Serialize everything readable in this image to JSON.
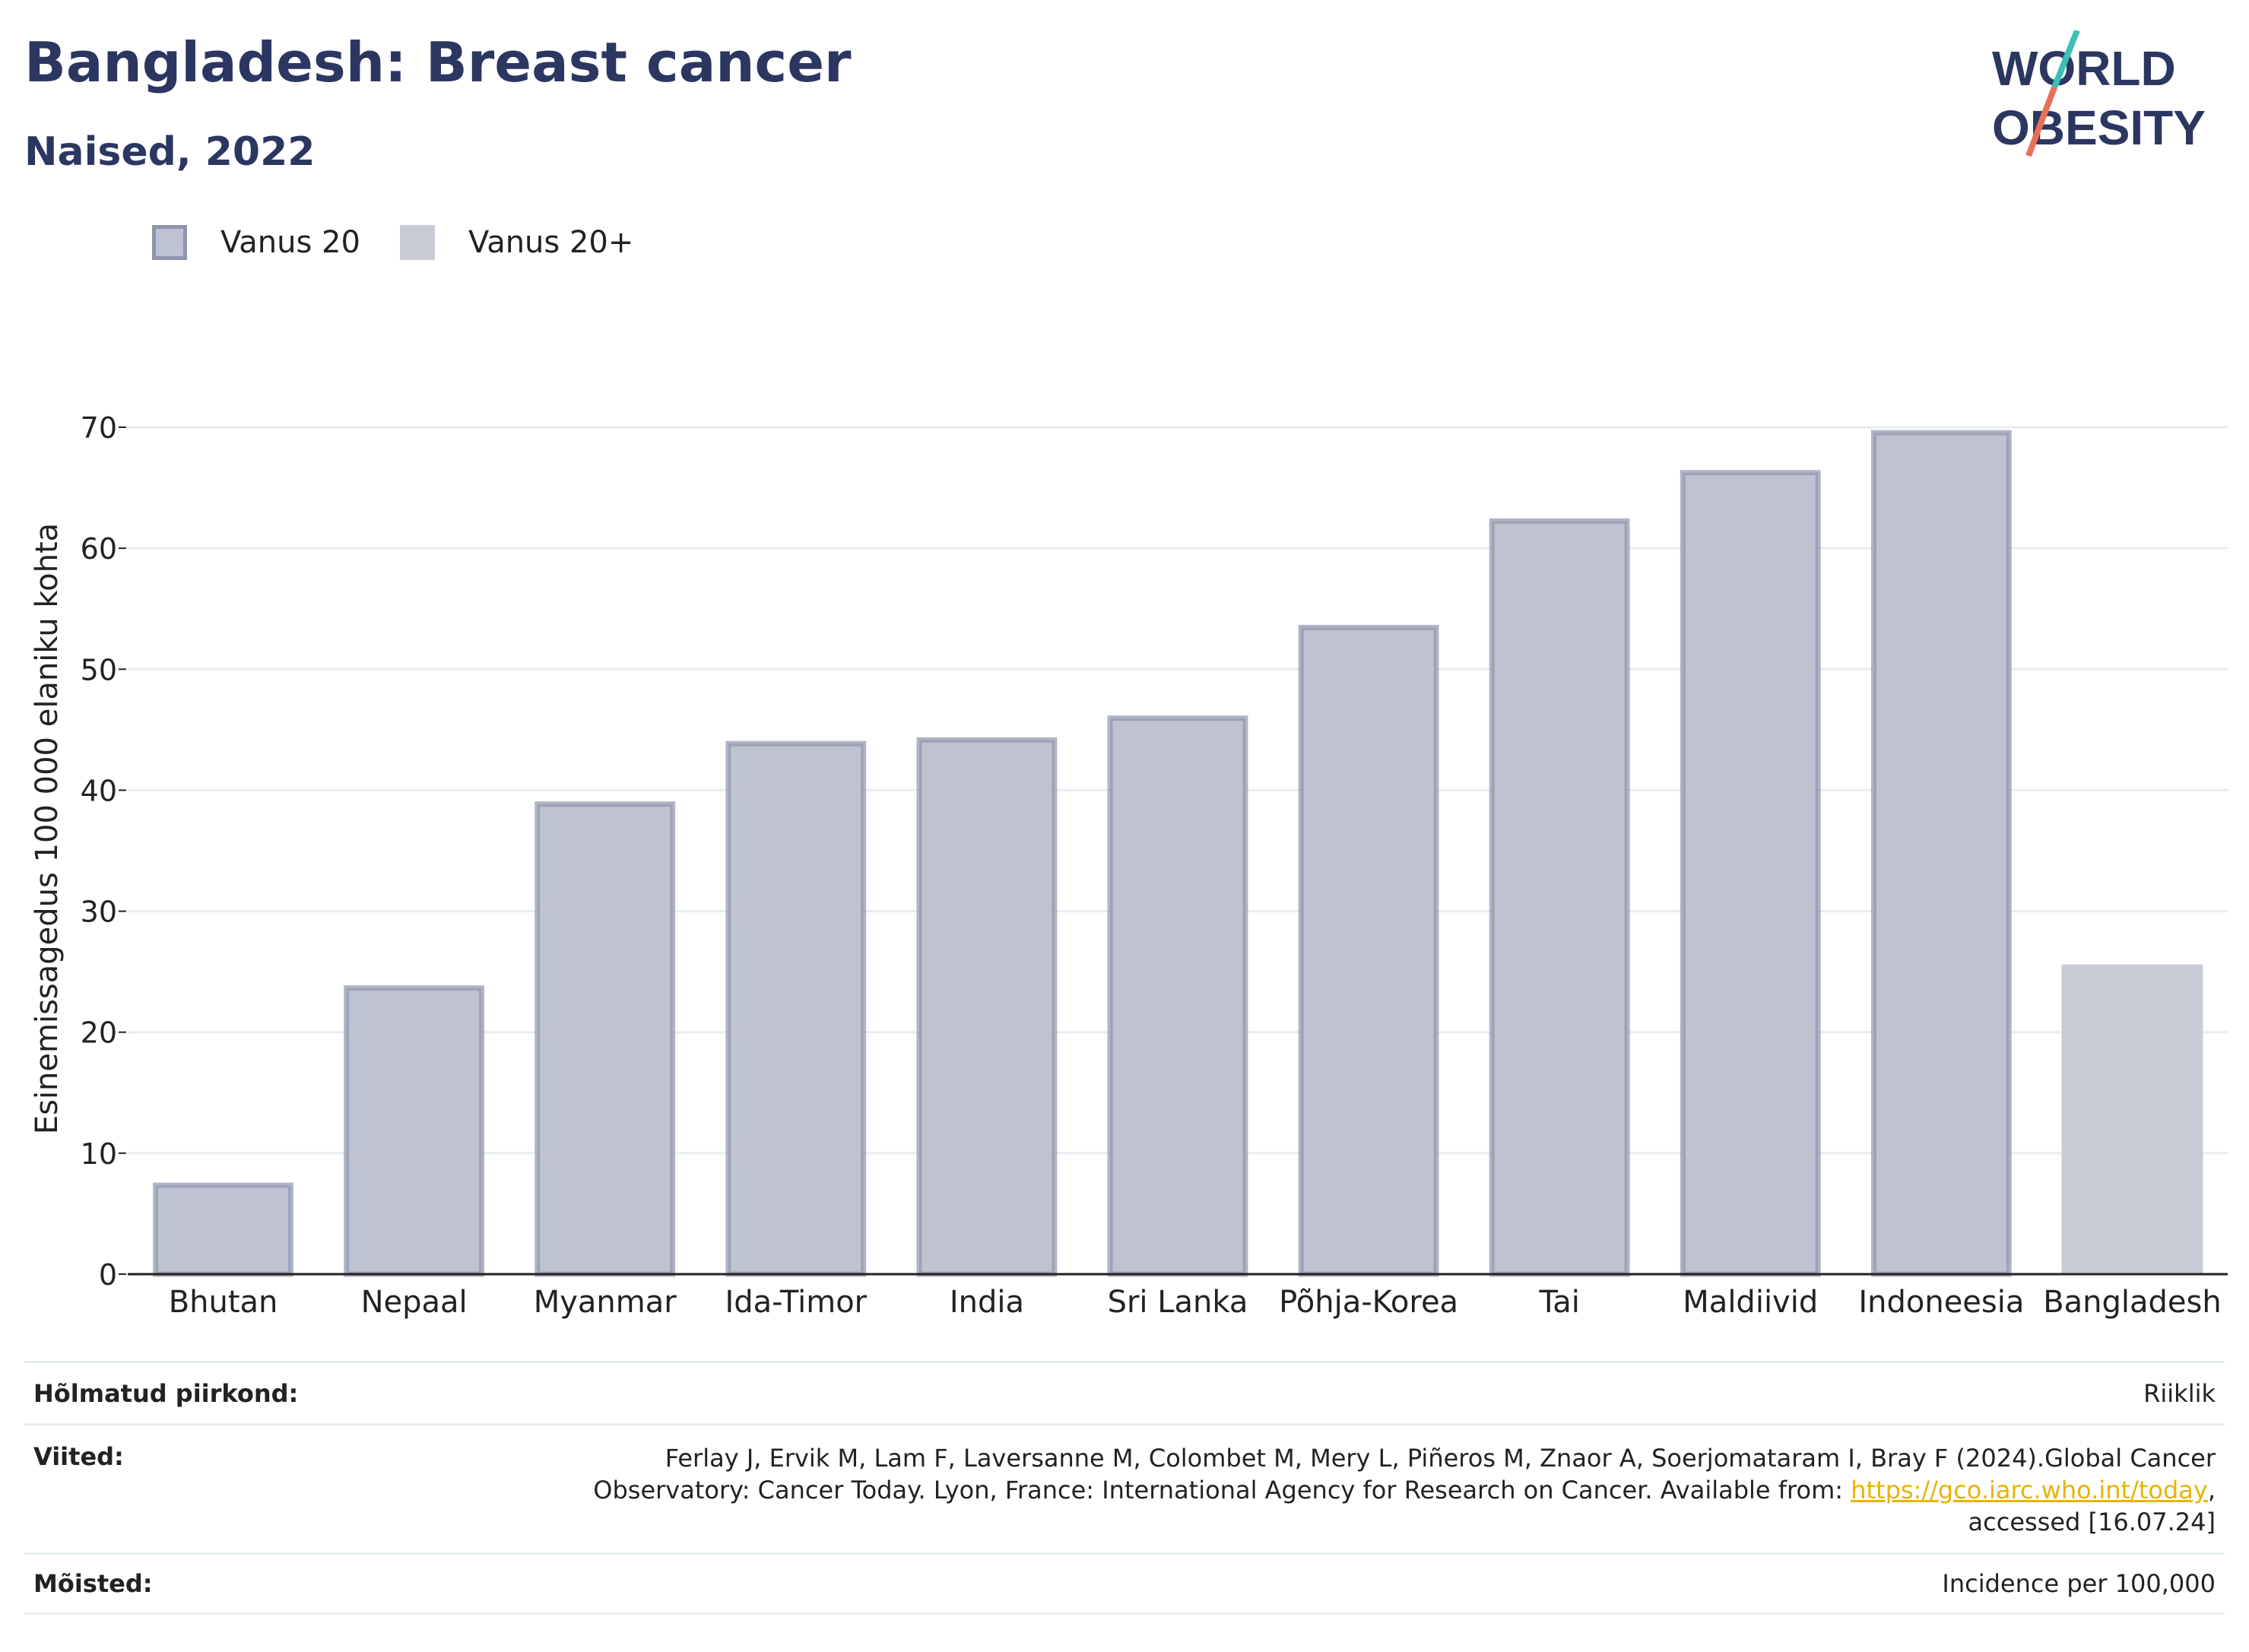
{
  "header": {
    "title": "Bangladesh: Breast cancer",
    "subtitle": "Naised, 2022"
  },
  "logo": {
    "line1": "WORLD",
    "line2": "OBESITY",
    "colors": {
      "text": "#2b3661",
      "teal": "#3cbfb4",
      "coral": "#e8705a"
    }
  },
  "legend": {
    "items": [
      {
        "label": "Vanus 20",
        "color": "#bfc3d1",
        "border": "#8e94ac"
      },
      {
        "label": "Vanus 20+",
        "color": "#c8cad6"
      }
    ]
  },
  "chart_data": {
    "type": "bar",
    "categories": [
      "Bhutan",
      "Nepaal",
      "Myanmar",
      "Ida-Timor",
      "India",
      "Sri Lanka",
      "Põhja-Korea",
      "Tai",
      "Maldiivid",
      "Indoneesia",
      "Bangladesh"
    ],
    "series": [
      {
        "name": "Vanus 20",
        "values": [
          7.6,
          23.9,
          39.1,
          44.1,
          44.4,
          46.2,
          53.7,
          62.5,
          66.5,
          69.8,
          null
        ]
      },
      {
        "name": "Vanus 20+",
        "values": [
          null,
          null,
          null,
          null,
          null,
          null,
          null,
          null,
          null,
          null,
          25.6
        ]
      }
    ],
    "ylabel": "Esinemissagedus 100 000 elaniku kohta",
    "xlabel": "",
    "ylim": [
      0,
      70
    ],
    "yticks": [
      0,
      10,
      20,
      30,
      40,
      50,
      60,
      70
    ],
    "grid": true,
    "legend_position": "top-left",
    "colors": {
      "bar_fill": "#bfc3d1",
      "bar_border": "#8e94ac",
      "highlight_fill": "#c8cad6",
      "grid": "#e8ecef",
      "axis": "#222222"
    }
  },
  "footer": {
    "region_label": "Hõlmatud piirkond:",
    "region_value": "Riiklik",
    "refs_label": "Viited:",
    "refs_line1": "Ferlay J, Ervik M, Lam F, Laversanne M, Colombet M, Mery L, Piñeros M, Znaor A, Soerjomataram I, Bray F (2024).Global Cancer",
    "refs_line2_text": "Observatory: Cancer Today. Lyon, France: International Agency for Research on Cancer. Available from: ",
    "refs_link": "https://gco.iarc.who.int/today",
    "refs_line2_end": ",",
    "refs_line3": "accessed [16.07.24]",
    "definitions_label": "Mõisted:",
    "definitions_value": "Incidence per 100,000"
  }
}
